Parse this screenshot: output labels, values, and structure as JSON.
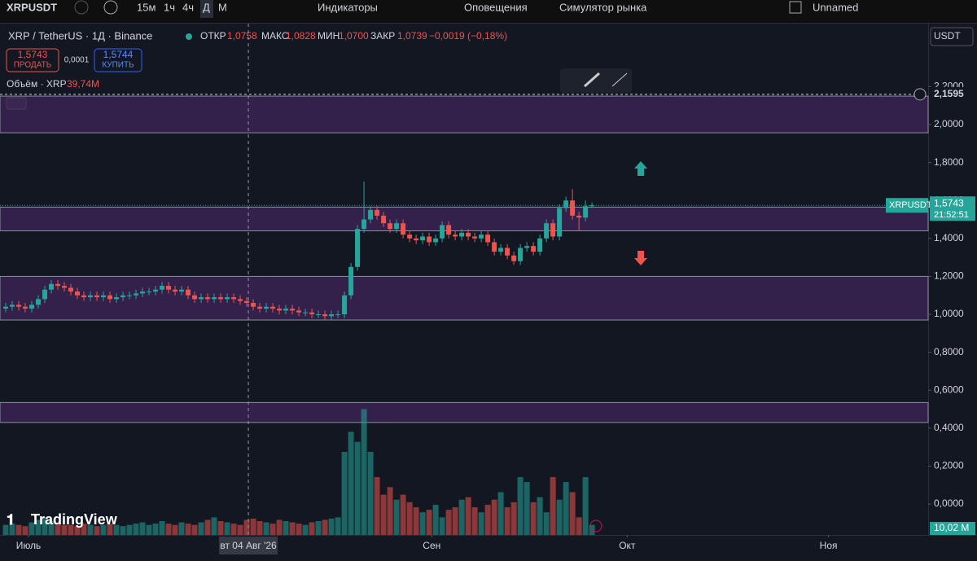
{
  "toolbar": {
    "symbol": "XRPUSDT",
    "intervals": [
      "15м",
      "1ч",
      "4ч",
      "Д",
      "М"
    ],
    "indicators": "Индикаторы",
    "alerts": "Оповещения",
    "replay": "Симулятор рынка",
    "layout": "Unnamed"
  },
  "header": {
    "title": "XRP / TetherUS · 1Д · Binance",
    "open_label": "ОТКР",
    "open": "1,0758",
    "high_label": "МАКС",
    "high": "1,0828",
    "low_label": "МИН",
    "low": "1,0700",
    "close_label": "ЗАКР",
    "close": "1,0739",
    "change": "−0,0019 (−0,18%)",
    "currency": "USDT"
  },
  "trade": {
    "sell_price": "1,5743",
    "sell": "ПРОДАТЬ",
    "spread": "0,0001",
    "buy_price": "1,5744",
    "buy": "КУПИТЬ"
  },
  "chart_data": {
    "type": "candlestick",
    "up_color": "#26a69a",
    "down_color": "#ef5350",
    "zone_color": "#5b2f7e",
    "open": [
      1.03,
      1.04,
      1.05,
      1.04,
      1.03,
      1.05,
      1.08,
      1.13,
      1.16,
      1.15,
      1.14,
      1.12,
      1.1,
      1.09,
      1.1,
      1.09,
      1.1,
      1.08,
      1.09,
      1.1,
      1.1,
      1.11,
      1.12,
      1.12,
      1.13,
      1.15,
      1.13,
      1.12,
      1.13,
      1.1,
      1.08,
      1.09,
      1.08,
      1.09,
      1.08,
      1.09,
      1.08,
      1.07,
      1.06,
      1.04,
      1.03,
      1.04,
      1.03,
      1.02,
      1.03,
      1.02,
      1.01,
      1.01,
      1.0,
      1.0,
      0.99,
      1.0,
      1.0,
      1.1,
      1.25,
      1.45,
      1.5,
      1.55,
      1.52,
      1.48,
      1.45,
      1.48,
      1.42,
      1.4,
      1.39,
      1.41,
      1.38,
      1.4,
      1.47,
      1.42,
      1.41,
      1.43,
      1.41,
      1.4,
      1.42,
      1.38,
      1.33,
      1.35,
      1.31,
      1.28,
      1.35,
      1.36,
      1.33,
      1.4,
      1.48,
      1.41,
      1.56,
      1.6,
      1.52,
      1.51,
      1.57
    ],
    "high": [
      1.06,
      1.07,
      1.07,
      1.06,
      1.07,
      1.1,
      1.15,
      1.18,
      1.18,
      1.17,
      1.16,
      1.14,
      1.12,
      1.12,
      1.12,
      1.12,
      1.12,
      1.11,
      1.12,
      1.12,
      1.13,
      1.14,
      1.14,
      1.15,
      1.17,
      1.17,
      1.15,
      1.15,
      1.15,
      1.12,
      1.11,
      1.11,
      1.11,
      1.11,
      1.11,
      1.11,
      1.1,
      1.09,
      1.08,
      1.06,
      1.06,
      1.06,
      1.05,
      1.05,
      1.05,
      1.04,
      1.03,
      1.03,
      1.02,
      1.02,
      1.02,
      1.02,
      1.12,
      1.27,
      1.47,
      1.7,
      1.57,
      1.57,
      1.54,
      1.5,
      1.5,
      1.5,
      1.44,
      1.42,
      1.43,
      1.43,
      1.42,
      1.49,
      1.49,
      1.44,
      1.45,
      1.45,
      1.43,
      1.44,
      1.44,
      1.4,
      1.37,
      1.37,
      1.33,
      1.37,
      1.38,
      1.38,
      1.42,
      1.5,
      1.5,
      1.58,
      1.62,
      1.66,
      1.54,
      1.6,
      1.59
    ],
    "low": [
      1.01,
      1.02,
      1.02,
      1.01,
      1.01,
      1.03,
      1.06,
      1.11,
      1.13,
      1.12,
      1.1,
      1.08,
      1.07,
      1.07,
      1.07,
      1.07,
      1.06,
      1.06,
      1.07,
      1.08,
      1.08,
      1.09,
      1.1,
      1.1,
      1.11,
      1.11,
      1.1,
      1.1,
      1.08,
      1.06,
      1.06,
      1.06,
      1.06,
      1.06,
      1.06,
      1.06,
      1.05,
      1.04,
      1.02,
      1.01,
      1.01,
      1.01,
      1.0,
      1.0,
      1.0,
      0.99,
      0.99,
      0.98,
      0.98,
      0.97,
      0.97,
      0.98,
      0.98,
      1.08,
      1.23,
      1.43,
      1.48,
      1.5,
      1.46,
      1.43,
      1.43,
      1.4,
      1.38,
      1.37,
      1.37,
      1.36,
      1.36,
      1.38,
      1.4,
      1.39,
      1.39,
      1.39,
      1.38,
      1.38,
      1.36,
      1.31,
      1.31,
      1.29,
      1.26,
      1.26,
      1.33,
      1.31,
      1.31,
      1.38,
      1.39,
      1.39,
      1.54,
      1.5,
      1.44,
      1.49,
      1.56
    ],
    "close": [
      1.04,
      1.05,
      1.04,
      1.03,
      1.05,
      1.08,
      1.13,
      1.16,
      1.15,
      1.14,
      1.12,
      1.1,
      1.09,
      1.1,
      1.09,
      1.1,
      1.08,
      1.09,
      1.1,
      1.1,
      1.11,
      1.12,
      1.12,
      1.13,
      1.15,
      1.13,
      1.12,
      1.13,
      1.1,
      1.08,
      1.09,
      1.08,
      1.09,
      1.08,
      1.09,
      1.08,
      1.07,
      1.06,
      1.04,
      1.03,
      1.04,
      1.03,
      1.02,
      1.03,
      1.02,
      1.01,
      1.01,
      1.0,
      1.0,
      0.99,
      1.0,
      1.0,
      1.1,
      1.25,
      1.45,
      1.5,
      1.55,
      1.52,
      1.48,
      1.45,
      1.48,
      1.42,
      1.4,
      1.39,
      1.41,
      1.38,
      1.4,
      1.47,
      1.42,
      1.41,
      1.43,
      1.41,
      1.4,
      1.42,
      1.38,
      1.33,
      1.35,
      1.31,
      1.28,
      1.35,
      1.36,
      1.33,
      1.4,
      1.48,
      1.41,
      1.56,
      1.6,
      1.52,
      1.51,
      1.57,
      1.5743
    ],
    "volume": [
      40,
      45,
      40,
      35,
      50,
      60,
      70,
      55,
      45,
      40,
      40,
      35,
      45,
      40,
      35,
      40,
      45,
      40,
      35,
      40,
      45,
      50,
      40,
      45,
      55,
      45,
      40,
      50,
      45,
      40,
      50,
      60,
      70,
      55,
      50,
      45,
      40,
      60,
      65,
      55,
      50,
      45,
      60,
      55,
      50,
      45,
      40,
      50,
      55,
      60,
      65,
      70,
      330,
      410,
      370,
      500,
      330,
      230,
      160,
      190,
      140,
      160,
      130,
      110,
      90,
      100,
      120,
      70,
      100,
      110,
      140,
      150,
      110,
      90,
      120,
      140,
      170,
      110,
      130,
      230,
      210,
      130,
      150,
      90,
      230,
      140,
      210,
      170,
      70,
      230,
      40
    ],
    "volume_lim": [
      0,
      550
    ],
    "ylim": [
      -0.163,
      2.528
    ],
    "yticks": [
      {
        "value": 0,
        "label": "0,0000"
      },
      {
        "value": 0.2,
        "label": "0,2000"
      },
      {
        "value": 0.4,
        "label": "0,4000"
      },
      {
        "value": 0.6,
        "label": "0,6000"
      },
      {
        "value": 0.8,
        "label": "0,8000"
      },
      {
        "value": 1,
        "label": "1,0000"
      },
      {
        "value": 1.2,
        "label": "1,2000"
      },
      {
        "value": 1.4,
        "label": "1,4000"
      },
      {
        "value": 1.6,
        "label": "1,6000"
      },
      {
        "value": 1.8,
        "label": "1,8000"
      },
      {
        "value": 2,
        "label": "2,0000"
      },
      {
        "value": 2.2,
        "label": "2,2000"
      }
    ],
    "xlim": [
      -0.5,
      141.6
    ],
    "xticks": [
      {
        "value": 3.5,
        "label": "Июль"
      },
      {
        "value": 65.4,
        "label": "Сен"
      },
      {
        "value": 95.4,
        "label": "Окт"
      },
      {
        "value": 126.3,
        "label": "Ноя"
      }
    ],
    "zones": [
      {
        "from": 1.957,
        "to": 2.15
      },
      {
        "from": 1.44,
        "to": 1.565
      },
      {
        "from": 0.97,
        "to": 1.2
      },
      {
        "from": 0.43,
        "to": 0.535
      }
    ],
    "crosshair": {
      "value": 37.25,
      "label": "вт 04 Авг '26"
    },
    "alert_line": {
      "value": 2.1595,
      "label": "2,1595"
    },
    "price_tag": {
      "symbol": "XRPUSDT",
      "value": 1.5743,
      "label": "1,5743",
      "timer": "21:52:51"
    },
    "volume_legend": {
      "title": "Объём · XRP",
      "value": "39,74M"
    },
    "volume_scale_label": "10,02 M",
    "logo": "TradingView"
  }
}
